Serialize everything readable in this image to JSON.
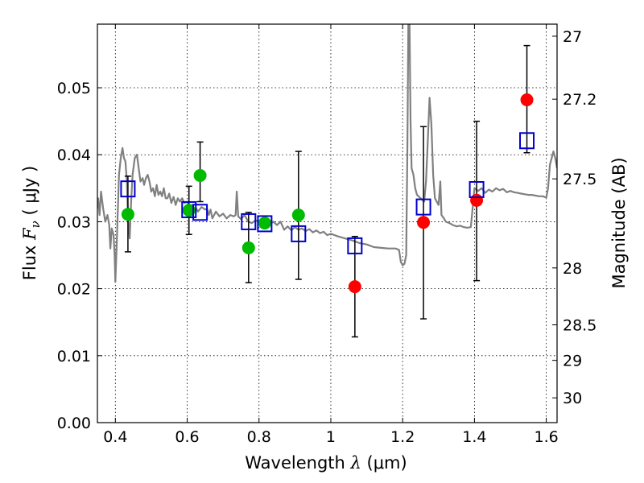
{
  "chart_data": {
    "type": "scatter",
    "xlabel": "Wavelength  λ (μm)",
    "ylabel": "Flux  F_ν  ( μJy )",
    "ylabel_right": "Magnitude (AB)",
    "xlim": [
      0.35,
      1.63
    ],
    "ylim": [
      0.0,
      0.0595
    ],
    "grid": true,
    "x_ticks": [
      0.4,
      0.6,
      0.8,
      1.0,
      1.2,
      1.4,
      1.6
    ],
    "x_tick_labels": [
      "0.4",
      "0.6",
      "0.8",
      "1",
      "1.2",
      "1.4",
      "1.6"
    ],
    "y_ticks": [
      0.0,
      0.01,
      0.02,
      0.03,
      0.04,
      0.05
    ],
    "y_tick_labels": [
      "0.00",
      "0.01",
      "0.02",
      "0.03",
      "0.04",
      "0.05"
    ],
    "right_ticks": [
      {
        "flux": 0.0577,
        "label": "27"
      },
      {
        "flux": 0.0483,
        "label": "27.2"
      },
      {
        "flux": 0.0364,
        "label": "27.5"
      },
      {
        "flux": 0.0231,
        "label": "28"
      },
      {
        "flux": 0.0146,
        "label": "28.5"
      },
      {
        "flux": 0.0093,
        "label": "29"
      },
      {
        "flux": 0.0037,
        "label": "30"
      }
    ],
    "template_color": "#808080",
    "template": [
      [
        0.35,
        0.032
      ],
      [
        0.352,
        0.0335
      ],
      [
        0.356,
        0.031
      ],
      [
        0.36,
        0.0345
      ],
      [
        0.366,
        0.032
      ],
      [
        0.372,
        0.03
      ],
      [
        0.378,
        0.031
      ],
      [
        0.383,
        0.0295
      ],
      [
        0.386,
        0.026
      ],
      [
        0.39,
        0.029
      ],
      [
        0.395,
        0.028
      ],
      [
        0.398,
        0.025
      ],
      [
        0.4,
        0.021
      ],
      [
        0.404,
        0.027
      ],
      [
        0.41,
        0.037
      ],
      [
        0.415,
        0.0395
      ],
      [
        0.42,
        0.041
      ],
      [
        0.424,
        0.0395
      ],
      [
        0.428,
        0.039
      ],
      [
        0.432,
        0.036
      ],
      [
        0.434,
        0.0325
      ],
      [
        0.436,
        0.03
      ],
      [
        0.44,
        0.0275
      ],
      [
        0.444,
        0.033
      ],
      [
        0.448,
        0.037
      ],
      [
        0.454,
        0.0395
      ],
      [
        0.46,
        0.04
      ],
      [
        0.465,
        0.038
      ],
      [
        0.47,
        0.036
      ],
      [
        0.476,
        0.0365
      ],
      [
        0.48,
        0.0355
      ],
      [
        0.485,
        0.0365
      ],
      [
        0.49,
        0.037
      ],
      [
        0.495,
        0.036
      ],
      [
        0.5,
        0.0345
      ],
      [
        0.505,
        0.035
      ],
      [
        0.51,
        0.0338
      ],
      [
        0.515,
        0.0355
      ],
      [
        0.52,
        0.034
      ],
      [
        0.525,
        0.0345
      ],
      [
        0.53,
        0.0338
      ],
      [
        0.535,
        0.035
      ],
      [
        0.54,
        0.0335
      ],
      [
        0.545,
        0.0335
      ],
      [
        0.55,
        0.0342
      ],
      [
        0.556,
        0.0328
      ],
      [
        0.562,
        0.0337
      ],
      [
        0.568,
        0.0325
      ],
      [
        0.574,
        0.0335
      ],
      [
        0.58,
        0.033
      ],
      [
        0.586,
        0.0335
      ],
      [
        0.592,
        0.0328
      ],
      [
        0.6,
        0.033
      ],
      [
        0.605,
        0.0322
      ],
      [
        0.61,
        0.0315
      ],
      [
        0.615,
        0.0325
      ],
      [
        0.62,
        0.0318
      ],
      [
        0.625,
        0.032
      ],
      [
        0.63,
        0.0315
      ],
      [
        0.64,
        0.0322
      ],
      [
        0.65,
        0.0318
      ],
      [
        0.655,
        0.032
      ],
      [
        0.66,
        0.031
      ],
      [
        0.665,
        0.0318
      ],
      [
        0.67,
        0.0305
      ],
      [
        0.68,
        0.0315
      ],
      [
        0.69,
        0.0308
      ],
      [
        0.7,
        0.0312
      ],
      [
        0.71,
        0.0305
      ],
      [
        0.72,
        0.031
      ],
      [
        0.73,
        0.0308
      ],
      [
        0.735,
        0.031
      ],
      [
        0.738,
        0.0345
      ],
      [
        0.742,
        0.0308
      ],
      [
        0.75,
        0.0304
      ],
      [
        0.76,
        0.031
      ],
      [
        0.77,
        0.03
      ],
      [
        0.78,
        0.0298
      ],
      [
        0.79,
        0.0302
      ],
      [
        0.8,
        0.03
      ],
      [
        0.81,
        0.0295
      ],
      [
        0.82,
        0.03
      ],
      [
        0.83,
        0.0296
      ],
      [
        0.84,
        0.03
      ],
      [
        0.85,
        0.0295
      ],
      [
        0.86,
        0.03
      ],
      [
        0.87,
        0.0288
      ],
      [
        0.88,
        0.0293
      ],
      [
        0.89,
        0.0287
      ],
      [
        0.9,
        0.0292
      ],
      [
        0.91,
        0.0288
      ],
      [
        0.92,
        0.029
      ],
      [
        0.93,
        0.0286
      ],
      [
        0.94,
        0.0289
      ],
      [
        0.95,
        0.0284
      ],
      [
        0.96,
        0.0287
      ],
      [
        0.97,
        0.0283
      ],
      [
        0.98,
        0.0285
      ],
      [
        0.99,
        0.028
      ],
      [
        1.0,
        0.0282
      ],
      [
        1.02,
        0.0278
      ],
      [
        1.04,
        0.0275
      ],
      [
        1.06,
        0.0272
      ],
      [
        1.08,
        0.0268
      ],
      [
        1.1,
        0.0266
      ],
      [
        1.12,
        0.0262
      ],
      [
        1.14,
        0.0261
      ],
      [
        1.16,
        0.026
      ],
      [
        1.18,
        0.026
      ],
      [
        1.19,
        0.0258
      ],
      [
        1.195,
        0.024
      ],
      [
        1.2,
        0.0235
      ],
      [
        1.205,
        0.0237
      ],
      [
        1.21,
        0.025
      ],
      [
        1.213,
        0.04
      ],
      [
        1.216,
        0.06
      ],
      [
        1.219,
        0.06
      ],
      [
        1.222,
        0.045
      ],
      [
        1.225,
        0.038
      ],
      [
        1.23,
        0.037
      ],
      [
        1.235,
        0.035
      ],
      [
        1.24,
        0.034
      ],
      [
        1.25,
        0.0335
      ],
      [
        1.26,
        0.033
      ],
      [
        1.265,
        0.036
      ],
      [
        1.27,
        0.042
      ],
      [
        1.275,
        0.0485
      ],
      [
        1.28,
        0.0445
      ],
      [
        1.285,
        0.037
      ],
      [
        1.29,
        0.0335
      ],
      [
        1.3,
        0.0325
      ],
      [
        1.305,
        0.036
      ],
      [
        1.308,
        0.031
      ],
      [
        1.315,
        0.0305
      ],
      [
        1.32,
        0.03
      ],
      [
        1.33,
        0.0298
      ],
      [
        1.34,
        0.0295
      ],
      [
        1.35,
        0.0293
      ],
      [
        1.36,
        0.0294
      ],
      [
        1.37,
        0.0292
      ],
      [
        1.38,
        0.0291
      ],
      [
        1.39,
        0.0292
      ],
      [
        1.4,
        0.035
      ],
      [
        1.41,
        0.0346
      ],
      [
        1.42,
        0.035
      ],
      [
        1.43,
        0.0343
      ],
      [
        1.44,
        0.0348
      ],
      [
        1.45,
        0.0345
      ],
      [
        1.46,
        0.035
      ],
      [
        1.47,
        0.0347
      ],
      [
        1.48,
        0.0349
      ],
      [
        1.49,
        0.0344
      ],
      [
        1.5,
        0.0346
      ],
      [
        1.51,
        0.0344
      ],
      [
        1.52,
        0.0343
      ],
      [
        1.53,
        0.0342
      ],
      [
        1.54,
        0.0341
      ],
      [
        1.55,
        0.034
      ],
      [
        1.56,
        0.034
      ],
      [
        1.57,
        0.0339
      ],
      [
        1.58,
        0.0338
      ],
      [
        1.59,
        0.0338
      ],
      [
        1.6,
        0.0336
      ],
      [
        1.605,
        0.035
      ],
      [
        1.61,
        0.0385
      ],
      [
        1.62,
        0.0405
      ],
      [
        1.625,
        0.0395
      ],
      [
        1.63,
        0.038
      ]
    ],
    "errorbars": [
      {
        "x": 0.435,
        "low": 0.0255,
        "high": 0.0368
      },
      {
        "x": 0.605,
        "low": 0.0281,
        "high": 0.0353
      },
      {
        "x": 0.636,
        "low": 0.033,
        "high": 0.0419
      },
      {
        "x": 0.771,
        "low": 0.0209,
        "high": 0.0314
      },
      {
        "x": 0.91,
        "low": 0.0214,
        "high": 0.0405
      },
      {
        "x": 1.067,
        "low": 0.0128,
        "high": 0.0278
      },
      {
        "x": 1.258,
        "low": 0.0155,
        "high": 0.0442
      },
      {
        "x": 1.406,
        "low": 0.0212,
        "high": 0.045
      },
      {
        "x": 1.546,
        "low": 0.0403,
        "high": 0.0563
      }
    ],
    "green_points": {
      "color": "#00bb00",
      "points": [
        [
          0.435,
          0.0311
        ],
        [
          0.605,
          0.0317
        ],
        [
          0.636,
          0.0369
        ],
        [
          0.771,
          0.0261
        ],
        [
          0.816,
          0.0298
        ],
        [
          0.91,
          0.031
        ]
      ]
    },
    "red_points": {
      "color": "#ff0000",
      "points": [
        [
          1.067,
          0.0203
        ],
        [
          1.258,
          0.0299
        ],
        [
          1.406,
          0.0332
        ],
        [
          1.546,
          0.0482
        ]
      ]
    },
    "model_boxes": {
      "color": "#0000cc",
      "points": [
        [
          0.435,
          0.0349
        ],
        [
          0.605,
          0.0318
        ],
        [
          0.636,
          0.0314
        ],
        [
          0.771,
          0.03
        ],
        [
          0.816,
          0.0297
        ],
        [
          0.91,
          0.0282
        ],
        [
          1.067,
          0.0264
        ],
        [
          1.258,
          0.0322
        ],
        [
          1.406,
          0.0348
        ],
        [
          1.546,
          0.0421
        ]
      ]
    }
  }
}
